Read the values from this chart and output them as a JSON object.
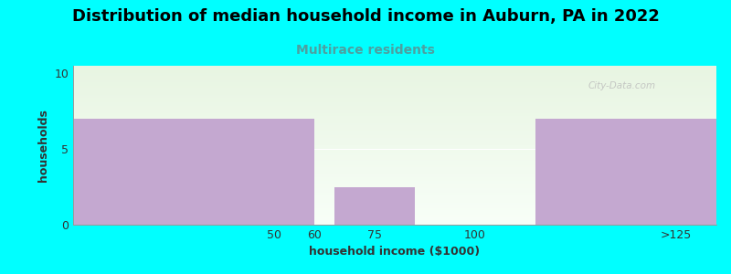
{
  "title": "Distribution of median household income in Auburn, PA in 2022",
  "subtitle": "Multirace residents",
  "xlabel": "household income ($1000)",
  "ylabel": "households",
  "background_color": "#00FFFF",
  "bar_color": "#C4A8D0",
  "chart_bg_top": "#E8F5E2",
  "chart_bg_bottom": "#F8FFF8",
  "bars": [
    {
      "x_left": 0,
      "x_right": 60,
      "height": 7
    },
    {
      "x_left": 65,
      "x_right": 85,
      "height": 2.5
    },
    {
      "x_left": 115,
      "x_right": 160,
      "height": 7
    }
  ],
  "xticks": [
    50,
    60,
    75,
    100,
    150
  ],
  "xtick_labels": [
    "50",
    "60",
    "75",
    "100",
    ">125"
  ],
  "yticks": [
    0,
    5,
    10
  ],
  "ylim": [
    0,
    10.5
  ],
  "xlim": [
    0,
    160
  ],
  "title_fontsize": 13,
  "subtitle_fontsize": 10,
  "axis_label_fontsize": 9,
  "tick_fontsize": 9,
  "watermark": "City-Data.com"
}
